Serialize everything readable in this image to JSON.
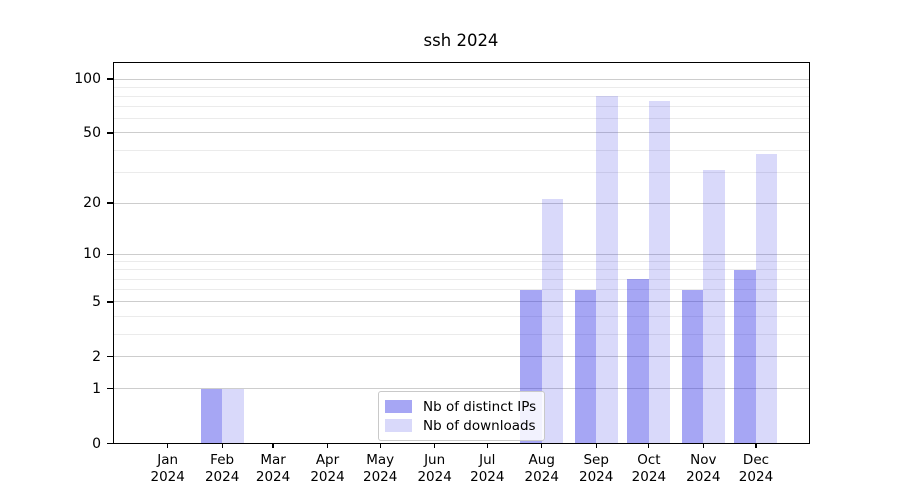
{
  "chart_data": {
    "type": "bar",
    "title": "ssh 2024",
    "categories": [
      "Jan",
      "Feb",
      "Mar",
      "Apr",
      "May",
      "Jun",
      "Jul",
      "Aug",
      "Sep",
      "Oct",
      "Nov",
      "Dec"
    ],
    "year_label": "2024",
    "series": [
      {
        "name": "Nb of distinct IPs",
        "color": "rgba(42,42,228,0.42)",
        "values": [
          0,
          1,
          0,
          0,
          0,
          0,
          0,
          6,
          6,
          7,
          6,
          8
        ]
      },
      {
        "name": "Nb of downloads",
        "color": "rgba(42,42,228,0.18)",
        "values": [
          0,
          1,
          0,
          0,
          0,
          0,
          0,
          21,
          80,
          75,
          31,
          38
        ]
      }
    ],
    "yscale": "log1p",
    "y_ticks": [
      0,
      1,
      2,
      5,
      10,
      20,
      50,
      100
    ],
    "y_minor_ticks": [
      3,
      4,
      6,
      7,
      8,
      9,
      30,
      40,
      60,
      70,
      80,
      90
    ],
    "ylim": [
      0,
      125
    ],
    "grid": true,
    "legend_position": "lower-center"
  }
}
